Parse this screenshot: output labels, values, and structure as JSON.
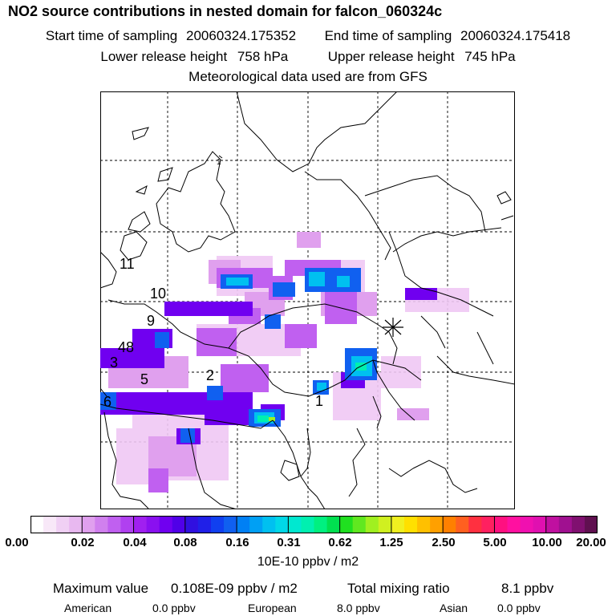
{
  "header": {
    "title": "NO2 source contributions in nested domain for falcon_060324c",
    "start_label": "Start time of sampling",
    "start_value": "20060324.175352",
    "end_label": "End time of sampling",
    "end_value": "20060324.175418",
    "lower_label": "Lower release height",
    "lower_value": "758 hPa",
    "upper_label": "Upper release height",
    "upper_value": "745 hPa",
    "met_note": "Meteorological data used are from GFS"
  },
  "map": {
    "trajectory_labels": [
      "11",
      "10",
      "9",
      "48",
      "3",
      "5",
      "6",
      "2",
      "1",
      "1"
    ],
    "marker": "star-marker"
  },
  "colorbar": {
    "tick_labels": [
      "0.00",
      "0.02",
      "0.04",
      "0.08",
      "0.16",
      "0.31",
      "0.62",
      "1.25",
      "2.50",
      "5.00",
      "10.00",
      "20.00"
    ],
    "unit": "10E-10 ppbv / m2",
    "colors": [
      "#ffffff",
      "#f8e8f8",
      "#f0d0f4",
      "#e8b8f0",
      "#e0a0ee",
      "#d080ee",
      "#c060f0",
      "#b040f0",
      "#a020f0",
      "#8a10f0",
      "#7000f0",
      "#5000e8",
      "#3010e0",
      "#2020e8",
      "#1040f0",
      "#1060f0",
      "#0080f4",
      "#00a0f4",
      "#00c0f0",
      "#00d8e8",
      "#00e8d0",
      "#00f0b0",
      "#00f080",
      "#00e050",
      "#20e020",
      "#60e820",
      "#a0f020",
      "#d0f020",
      "#f0f020",
      "#ffe000",
      "#ffc000",
      "#ffa000",
      "#ff8000",
      "#ff6020",
      "#ff3040",
      "#ff2060",
      "#ff1080",
      "#ff10a0",
      "#f010b0",
      "#e010b0",
      "#c010a0",
      "#a01090",
      "#801070",
      "#601050"
    ]
  },
  "footer": {
    "max_label": "Maximum value",
    "max_value": "0.108E-09 ppbv / m2",
    "total_label": "Total mixing ratio",
    "total_value": "8.1 ppbv",
    "american_label": "American",
    "american_value": "0.0 ppbv",
    "european_label": "European",
    "european_value": "8.0 ppbv",
    "asian_label": "Asian",
    "asian_value": "0.0 ppbv"
  }
}
